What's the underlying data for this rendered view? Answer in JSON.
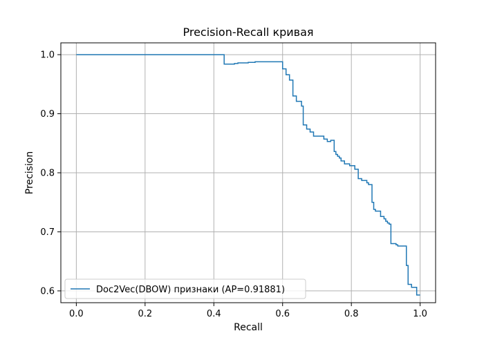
{
  "chart_data": {
    "type": "line",
    "title": "Precision-Recall кривая",
    "xlabel": "Recall",
    "ylabel": "Precision",
    "xlim": [
      -0.045,
      1.045
    ],
    "ylim": [
      0.58,
      1.02
    ],
    "x_ticks": [
      0.0,
      0.2,
      0.4,
      0.6,
      0.8,
      1.0
    ],
    "x_tick_labels": [
      "0.0",
      "0.2",
      "0.4",
      "0.6",
      "0.8",
      "1.0"
    ],
    "y_ticks": [
      0.6,
      0.7,
      0.8,
      0.9,
      1.0
    ],
    "y_tick_labels": [
      "0.6",
      "0.7",
      "0.8",
      "0.9",
      "1.0"
    ],
    "grid": true,
    "legend_position": "lower-left",
    "series": [
      {
        "name": "Doc2Vec(DBOW) признаки (AP=0.91881)",
        "color": "#1f77b4",
        "step": "post",
        "x": [
          1.0,
          0.995,
          0.99,
          0.98,
          0.975,
          0.97,
          0.965,
          0.96,
          0.94,
          0.935,
          0.93,
          0.92,
          0.915,
          0.91,
          0.905,
          0.9,
          0.895,
          0.89,
          0.885,
          0.875,
          0.87,
          0.865,
          0.86,
          0.85,
          0.845,
          0.835,
          0.83,
          0.825,
          0.82,
          0.81,
          0.8,
          0.795,
          0.79,
          0.78,
          0.775,
          0.77,
          0.765,
          0.76,
          0.755,
          0.75,
          0.74,
          0.73,
          0.72,
          0.71,
          0.69,
          0.68,
          0.675,
          0.67,
          0.66,
          0.655,
          0.65,
          0.64,
          0.63,
          0.62,
          0.61,
          0.6,
          0.575,
          0.56,
          0.52,
          0.5,
          0.47,
          0.46,
          0.435,
          0.43,
          0.0
        ],
        "y": [
          0.593,
          0.593,
          0.606,
          0.606,
          0.611,
          0.611,
          0.643,
          0.676,
          0.676,
          0.678,
          0.68,
          0.68,
          0.713,
          0.715,
          0.718,
          0.722,
          0.726,
          0.726,
          0.735,
          0.735,
          0.738,
          0.75,
          0.78,
          0.783,
          0.787,
          0.787,
          0.79,
          0.79,
          0.806,
          0.812,
          0.812,
          0.815,
          0.815,
          0.82,
          0.82,
          0.825,
          0.828,
          0.831,
          0.836,
          0.855,
          0.853,
          0.857,
          0.862,
          0.862,
          0.869,
          0.874,
          0.874,
          0.881,
          0.913,
          0.921,
          0.921,
          0.93,
          0.957,
          0.966,
          0.976,
          0.988,
          0.988,
          0.988,
          0.987,
          0.986,
          0.985,
          0.984,
          0.984,
          1.0,
          1.0
        ]
      }
    ]
  }
}
